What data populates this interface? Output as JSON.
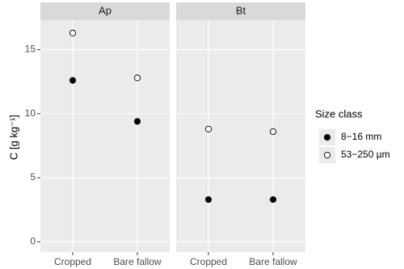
{
  "chart_data": {
    "type": "scatter",
    "y_label": "C [g kg⁻¹]",
    "legend_title": "Size class",
    "ylim": [
      -0.8,
      17.3
    ],
    "yticks": [
      0,
      5,
      10,
      15
    ],
    "grid": true,
    "facets": [
      {
        "title": "Ap",
        "categories": [
          "Cropped",
          "Bare fallow"
        ]
      },
      {
        "title": "Bt",
        "categories": [
          "Cropped",
          "Bare fallow"
        ]
      }
    ],
    "series": [
      {
        "name": "8−16 mm",
        "color": "#000000",
        "values": [
          [
            12.6,
            9.4
          ],
          [
            3.3,
            3.3
          ]
        ]
      },
      {
        "name": "53−250 µm",
        "color": "#ffffff",
        "values": [
          [
            16.3,
            12.8
          ],
          [
            8.8,
            8.6
          ]
        ]
      }
    ]
  }
}
